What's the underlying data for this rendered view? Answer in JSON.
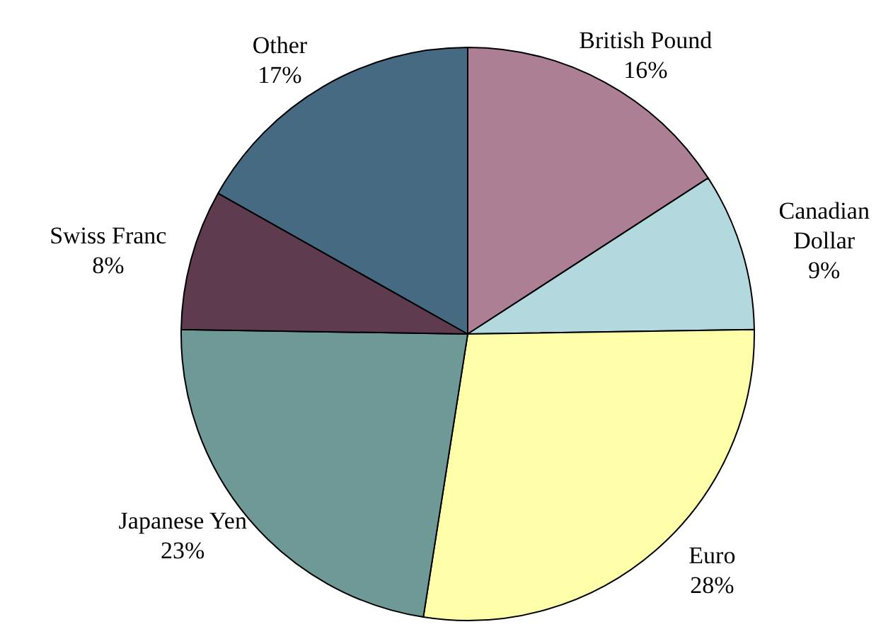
{
  "chart_data": {
    "type": "pie",
    "categories": [
      "British Pound",
      "Canadian Dollar",
      "Euro",
      "Japanese Yen",
      "Swiss Franc",
      "Other"
    ],
    "values": [
      16,
      9,
      28,
      23,
      8,
      17
    ],
    "colors": [
      "#ad7f95",
      "#b3d8dd",
      "#ffffaa",
      "#6f9996",
      "#5f3b4f",
      "#456a82"
    ],
    "value_labels": [
      "16%",
      "9%",
      "28%",
      "23%",
      "8%",
      "17%"
    ],
    "legend": false
  }
}
